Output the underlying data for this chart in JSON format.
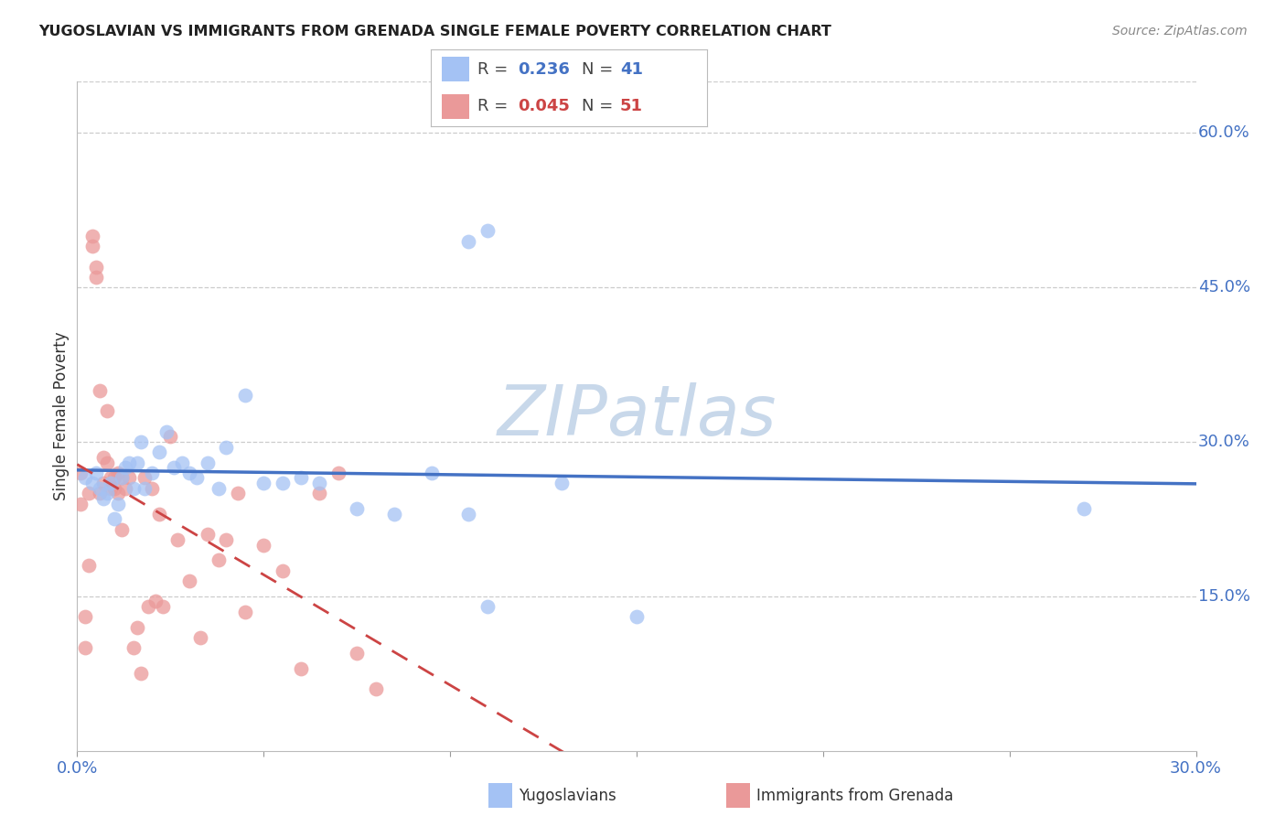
{
  "title": "YUGOSLAVIAN VS IMMIGRANTS FROM GRENADA SINGLE FEMALE POVERTY CORRELATION CHART",
  "source": "Source: ZipAtlas.com",
  "ylabel": "Single Female Poverty",
  "right_yticks": [
    "60.0%",
    "45.0%",
    "30.0%",
    "15.0%"
  ],
  "right_ytick_vals": [
    0.6,
    0.45,
    0.3,
    0.15
  ],
  "xmin": 0.0,
  "xmax": 0.3,
  "ymin": 0.0,
  "ymax": 0.65,
  "color_yug": "#a4c2f4",
  "color_gren": "#ea9999",
  "color_line_yug": "#4472c4",
  "color_line_gren": "#cc4444",
  "watermark": "ZIPatlas",
  "watermark_color": "#c8d8ea",
  "yugoslavians_x": [
    0.002,
    0.004,
    0.005,
    0.006,
    0.007,
    0.008,
    0.009,
    0.01,
    0.011,
    0.012,
    0.013,
    0.014,
    0.015,
    0.016,
    0.017,
    0.018,
    0.02,
    0.022,
    0.024,
    0.026,
    0.028,
    0.03,
    0.032,
    0.035,
    0.038,
    0.04,
    0.045,
    0.05,
    0.055,
    0.06,
    0.065,
    0.075,
    0.085,
    0.095,
    0.105,
    0.11,
    0.13,
    0.15,
    0.105,
    0.11,
    0.27
  ],
  "yugoslavians_y": [
    0.265,
    0.26,
    0.27,
    0.255,
    0.245,
    0.25,
    0.26,
    0.225,
    0.24,
    0.265,
    0.275,
    0.28,
    0.255,
    0.28,
    0.3,
    0.255,
    0.27,
    0.29,
    0.31,
    0.275,
    0.28,
    0.27,
    0.265,
    0.28,
    0.255,
    0.295,
    0.345,
    0.26,
    0.26,
    0.265,
    0.26,
    0.235,
    0.23,
    0.27,
    0.23,
    0.14,
    0.26,
    0.13,
    0.495,
    0.505,
    0.235
  ],
  "grenada_x": [
    0.001,
    0.001,
    0.002,
    0.002,
    0.003,
    0.003,
    0.004,
    0.004,
    0.005,
    0.005,
    0.006,
    0.006,
    0.007,
    0.007,
    0.008,
    0.008,
    0.009,
    0.009,
    0.01,
    0.01,
    0.011,
    0.011,
    0.012,
    0.012,
    0.013,
    0.014,
    0.015,
    0.016,
    0.017,
    0.018,
    0.019,
    0.02,
    0.021,
    0.022,
    0.023,
    0.025,
    0.027,
    0.03,
    0.033,
    0.035,
    0.038,
    0.04,
    0.043,
    0.045,
    0.05,
    0.055,
    0.06,
    0.065,
    0.07,
    0.075,
    0.08
  ],
  "grenada_y": [
    0.27,
    0.24,
    0.13,
    0.1,
    0.18,
    0.25,
    0.49,
    0.5,
    0.46,
    0.47,
    0.25,
    0.35,
    0.285,
    0.26,
    0.28,
    0.33,
    0.265,
    0.255,
    0.265,
    0.255,
    0.27,
    0.25,
    0.265,
    0.215,
    0.255,
    0.265,
    0.1,
    0.12,
    0.075,
    0.265,
    0.14,
    0.255,
    0.145,
    0.23,
    0.14,
    0.305,
    0.205,
    0.165,
    0.11,
    0.21,
    0.185,
    0.205,
    0.25,
    0.135,
    0.2,
    0.175,
    0.08,
    0.25,
    0.27,
    0.095,
    0.06
  ]
}
